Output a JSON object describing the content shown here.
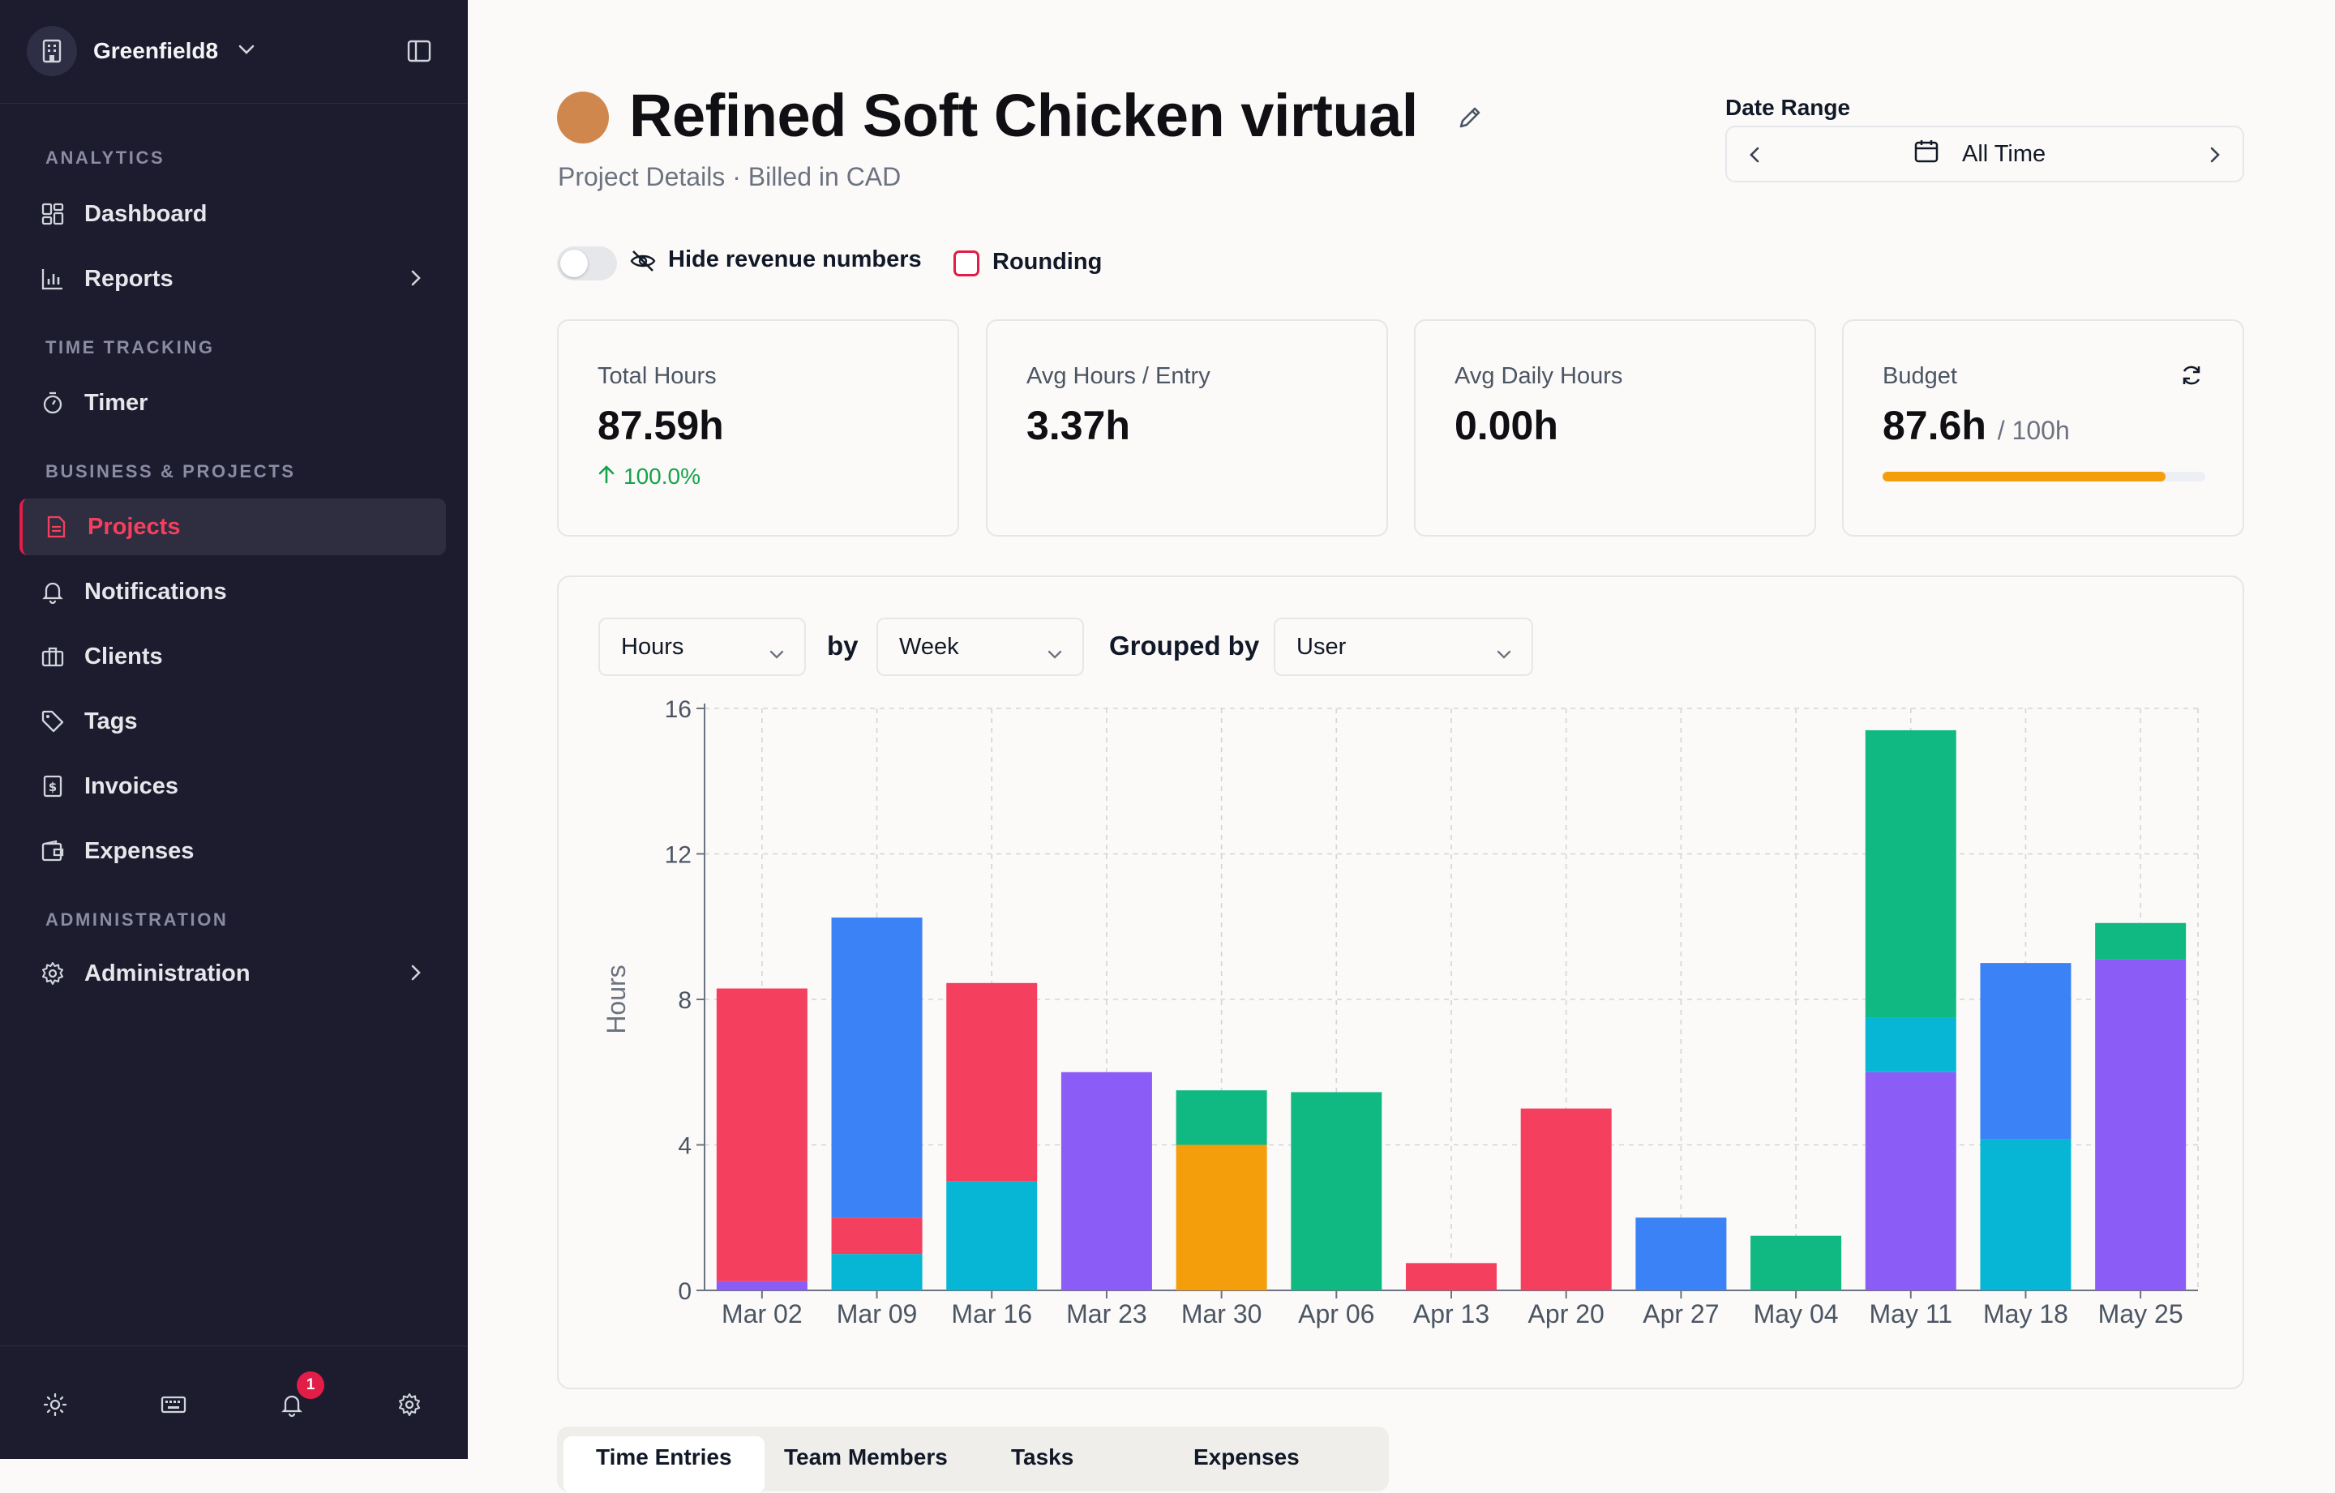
{
  "workspace": {
    "name": "Greenfield8"
  },
  "sidebar": {
    "sections": [
      {
        "label": "ANALYTICS"
      },
      {
        "label": "TIME TRACKING"
      },
      {
        "label": "BUSINESS & PROJECTS"
      },
      {
        "label": "ADMINISTRATION"
      }
    ],
    "items": [
      {
        "label": "Dashboard",
        "icon": "dashboard-icon"
      },
      {
        "label": "Reports",
        "icon": "bar-chart-icon"
      },
      {
        "label": "Timer",
        "icon": "stopwatch-icon"
      },
      {
        "label": "Projects",
        "icon": "document-icon",
        "active": true
      },
      {
        "label": "Notifications",
        "icon": "bell-icon"
      },
      {
        "label": "Clients",
        "icon": "briefcase-icon"
      },
      {
        "label": "Tags",
        "icon": "tag-icon"
      },
      {
        "label": "Invoices",
        "icon": "invoice-icon"
      },
      {
        "label": "Expenses",
        "icon": "wallet-icon"
      },
      {
        "label": "Administration",
        "icon": "gear-icon"
      }
    ],
    "footer": {
      "notification_count": "1"
    }
  },
  "project": {
    "title": "Refined Soft Chicken virtual",
    "subtitle": "Project Details · Billed in CAD",
    "color": "#d0874d"
  },
  "date_range": {
    "label": "Date Range",
    "value": "All Time"
  },
  "options": {
    "hide_revenue_label": "Hide revenue numbers",
    "rounding_label": "Rounding"
  },
  "stats": {
    "total_hours": {
      "label": "Total Hours",
      "value": "87.59h",
      "trend": "100.0%"
    },
    "avg_hours_entry": {
      "label": "Avg Hours / Entry",
      "value": "3.37h"
    },
    "avg_daily_hours": {
      "label": "Avg Daily Hours",
      "value": "0.00h"
    },
    "budget": {
      "label": "Budget",
      "value": "87.6h",
      "total": "/ 100h",
      "progress": 0.876
    }
  },
  "chart_controls": {
    "metric": "Hours",
    "by_label": "by",
    "interval": "Week",
    "grouped_label": "Grouped by",
    "group": "User"
  },
  "chart_data": {
    "type": "bar",
    "stacked": true,
    "ylabel": "Hours",
    "ylim": [
      0,
      16
    ],
    "yticks": [
      0,
      4,
      8,
      12,
      16
    ],
    "grid": true,
    "categories": [
      "Mar 02",
      "Mar 09",
      "Mar 16",
      "Mar 23",
      "Mar 30",
      "Apr 06",
      "Apr 13",
      "Apr 20",
      "Apr 27",
      "May 04",
      "May 11",
      "May 18",
      "May 25"
    ],
    "series": [
      {
        "color": "#8b5cf6",
        "values": [
          0.25,
          0,
          0,
          6.0,
          0,
          0,
          0,
          0,
          0,
          0,
          6.0,
          0,
          9.1
        ]
      },
      {
        "color": "#06b6d4",
        "values": [
          0,
          1.0,
          3.0,
          0,
          0,
          0,
          0,
          0,
          0,
          0,
          1.5,
          4.15,
          0
        ]
      },
      {
        "color": "#f59e0b",
        "values": [
          0,
          0,
          0,
          0,
          4.0,
          0,
          0,
          0,
          0,
          0,
          0,
          0,
          0
        ]
      },
      {
        "color": "#f43f5e",
        "values": [
          8.05,
          1.0,
          5.45,
          0,
          0,
          0,
          0.75,
          5.0,
          0,
          0,
          0,
          0,
          0
        ]
      },
      {
        "color": "#3b82f6",
        "values": [
          0,
          8.25,
          0,
          0,
          0,
          0,
          0,
          0,
          2.0,
          0,
          0,
          4.85,
          0
        ]
      },
      {
        "color": "#10b981",
        "values": [
          0,
          0,
          0,
          0,
          1.5,
          5.45,
          0,
          0,
          0,
          1.5,
          7.9,
          0,
          1.0
        ]
      }
    ]
  },
  "tabs": [
    {
      "label": "Time Entries",
      "active": true
    },
    {
      "label": "Team Members"
    },
    {
      "label": "Tasks"
    },
    {
      "label": "Expenses"
    }
  ]
}
